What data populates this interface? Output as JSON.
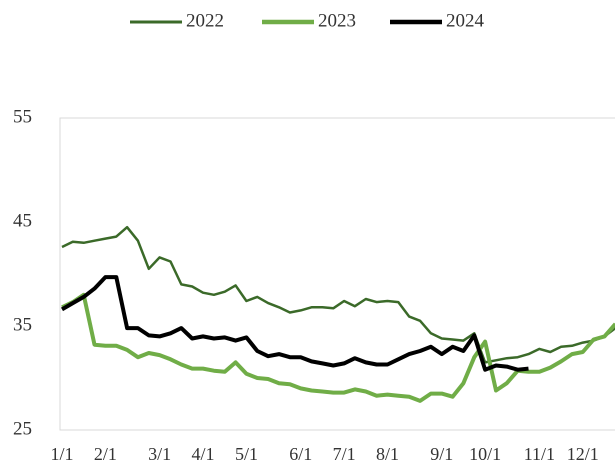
{
  "chart_data": {
    "type": "line",
    "categories": [
      "1/1",
      null,
      null,
      null,
      "2/1",
      null,
      null,
      null,
      null,
      "3/1",
      null,
      null,
      null,
      "4/1",
      null,
      null,
      null,
      "5/1",
      null,
      null,
      null,
      null,
      "6/1",
      null,
      null,
      null,
      "7/1",
      null,
      null,
      null,
      "8/1",
      null,
      null,
      null,
      null,
      "9/1",
      null,
      null,
      null,
      "10/1",
      null,
      null,
      null,
      null,
      "11/1",
      null,
      null,
      null,
      "12/1",
      null,
      null,
      null
    ],
    "series": [
      {
        "name": "2022",
        "color": "#3b6a29",
        "width": 2.5,
        "values": [
          42.6,
          43.1,
          43.0,
          43.2,
          43.4,
          43.6,
          44.5,
          43.2,
          40.5,
          41.6,
          41.2,
          39.0,
          38.8,
          38.2,
          38.0,
          38.3,
          38.9,
          37.4,
          37.8,
          37.2,
          36.8,
          36.3,
          36.5,
          36.8,
          36.8,
          36.7,
          37.4,
          36.9,
          37.6,
          37.3,
          37.4,
          37.3,
          35.9,
          35.5,
          34.3,
          33.8,
          33.7,
          33.6,
          34.3,
          31.5,
          31.7,
          31.9,
          32.0,
          32.3,
          32.8,
          32.5,
          33.0,
          33.1,
          33.4,
          33.6,
          34.0,
          34.8
        ]
      },
      {
        "name": "2023",
        "color": "#70ad47",
        "width": 4,
        "values": [
          36.8,
          37.3,
          38.0,
          33.2,
          33.1,
          33.1,
          32.7,
          32.0,
          32.4,
          32.2,
          31.8,
          31.3,
          30.9,
          30.9,
          30.7,
          30.6,
          31.5,
          30.4,
          30.0,
          29.9,
          29.5,
          29.4,
          29.0,
          28.8,
          28.7,
          28.6,
          28.6,
          28.9,
          28.7,
          28.3,
          28.4,
          28.3,
          28.2,
          27.8,
          28.5,
          28.5,
          28.2,
          29.5,
          32.0,
          33.5,
          28.8,
          29.5,
          30.7,
          30.6,
          30.6,
          31.0,
          31.6,
          32.3,
          32.5,
          33.7,
          34.0,
          35.2
        ]
      },
      {
        "name": "2024",
        "color": "#000000",
        "width": 4,
        "values": [
          36.6,
          37.2,
          37.8,
          38.6,
          39.7,
          39.7,
          34.8,
          34.8,
          34.1,
          34.0,
          34.3,
          34.8,
          33.8,
          34.0,
          33.8,
          33.9,
          33.6,
          33.9,
          32.6,
          32.1,
          32.3,
          32.0,
          32.0,
          31.6,
          31.4,
          31.2,
          31.4,
          31.9,
          31.5,
          31.3,
          31.3,
          31.8,
          32.3,
          32.6,
          33.0,
          32.3,
          33.0,
          32.6,
          34.1,
          30.8,
          31.2,
          31.1,
          30.8,
          30.9,
          null,
          null,
          null,
          null,
          null,
          null,
          null,
          null
        ]
      }
    ],
    "ylim": [
      25,
      55
    ],
    "yticks": [
      25,
      35,
      45,
      55
    ],
    "grid": false,
    "legend_position": "top"
  }
}
